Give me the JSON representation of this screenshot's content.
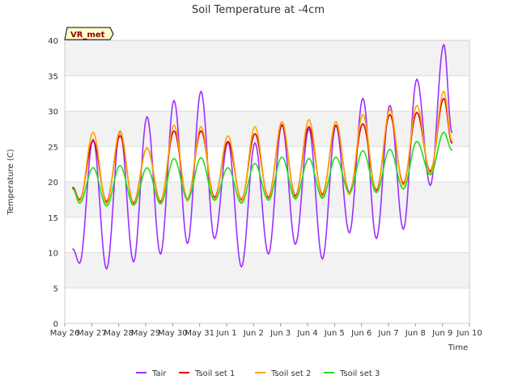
{
  "chart_data": {
    "type": "line",
    "title": "Soil Temperature at -4cm",
    "xlabel": "Time",
    "ylabel": "Temperature (C)",
    "ylim": [
      0,
      40
    ],
    "xlim": [
      0,
      15
    ],
    "yticks": [
      0,
      5,
      10,
      15,
      20,
      25,
      30,
      35,
      40
    ],
    "xticks": [
      "May 26",
      "May 27",
      "May 28",
      "May 29",
      "May 30",
      "May 31",
      "Jun 1",
      "Jun 2",
      "Jun 3",
      "Jun 4",
      "Jun 5",
      "Jun 6",
      "Jun 7",
      "Jun 8",
      "Jun 9",
      "Jun 10"
    ],
    "station_label": "VR_met",
    "grid": true,
    "legend_position": "bottom",
    "day_extrema": {
      "x": [
        0.3,
        0.55,
        1.05,
        1.55,
        2.05,
        2.55,
        3.05,
        3.55,
        4.05,
        4.55,
        5.05,
        5.55,
        6.05,
        6.55,
        7.05,
        7.55,
        8.05,
        8.55,
        9.05,
        9.55,
        10.05,
        10.55,
        11.05,
        11.55,
        12.05,
        12.55,
        13.05,
        13.55,
        14.05,
        14.35
      ],
      "note_units": "days since May 26"
    },
    "series": [
      {
        "name": "Tair",
        "color": "#9b30ff",
        "values": [
          10.5,
          8.5,
          26.0,
          7.7,
          27.2,
          8.7,
          29.2,
          9.8,
          31.5,
          11.3,
          32.8,
          12.0,
          25.6,
          8.0,
          25.5,
          9.8,
          28.1,
          11.2,
          27.5,
          9.1,
          28.0,
          12.8,
          31.8,
          12.0,
          30.8,
          13.3,
          34.5,
          19.5,
          39.4,
          27.0
        ]
      },
      {
        "name": "Tsoil set 1",
        "color": "#e00000",
        "values": [
          19.2,
          17.5,
          25.8,
          17.2,
          26.5,
          17.0,
          24.8,
          17.2,
          27.2,
          17.5,
          27.2,
          17.8,
          25.7,
          17.5,
          26.8,
          17.8,
          28.0,
          18.0,
          27.8,
          18.2,
          28.0,
          18.5,
          28.2,
          18.8,
          29.5,
          19.8,
          29.8,
          21.5,
          31.8,
          25.5
        ]
      },
      {
        "name": "Tsoil set 2",
        "color": "#ffa500",
        "values": [
          19.0,
          17.3,
          27.0,
          16.9,
          27.2,
          16.8,
          24.8,
          17.0,
          28.0,
          17.3,
          27.8,
          17.5,
          26.5,
          17.3,
          27.8,
          17.5,
          28.5,
          17.7,
          28.8,
          17.9,
          28.5,
          18.2,
          29.5,
          18.5,
          30.2,
          19.5,
          30.8,
          21.2,
          32.8,
          25.8
        ]
      },
      {
        "name": "Tsoil set 3",
        "color": "#22dd22",
        "values": [
          19.0,
          17.0,
          22.0,
          16.6,
          22.3,
          16.7,
          22.0,
          16.9,
          23.3,
          17.5,
          23.4,
          17.4,
          22.0,
          17.0,
          22.6,
          17.4,
          23.5,
          17.6,
          23.3,
          17.7,
          23.5,
          18.5,
          24.4,
          18.5,
          24.6,
          19.0,
          25.7,
          21.0,
          27.0,
          24.5
        ]
      }
    ]
  }
}
